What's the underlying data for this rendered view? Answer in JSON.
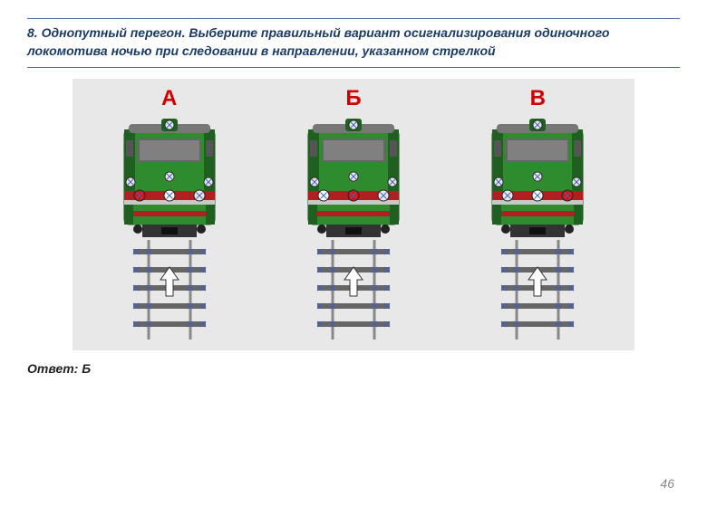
{
  "question": "8. Однопутный перегон. Выберите правильный вариант осигнализирования одиночного локомотива ночью при следовании в направлении, указанном стрелкой",
  "answer": "Ответ: Б",
  "page": "46",
  "labels": [
    "А",
    "Б",
    "В"
  ],
  "label_color": "#d00000",
  "diagram_bg": "#e8e8e8",
  "loco_body": "#2e8b2e",
  "loco_body_dark": "#1f5f1f",
  "loco_roof": "#777777",
  "windshield": "#808080",
  "windshield_frame": "#666666",
  "side_window": "#555555",
  "bumper_red": "#b02020",
  "bumper_band": "#c8c8c8",
  "undercarriage": "#333333",
  "rail_color": "#888888",
  "sleeper_color": "#666666",
  "arrow_fill": "#ffffff",
  "arrow_stroke": "#333333",
  "light_off": "#e8e8e8",
  "light_white": "#ffffff",
  "light_red": "#e01010",
  "light_stroke": "#222222",
  "marker_stroke": "#4060c0",
  "locos": [
    {
      "top_light": "off",
      "mid_left": "off",
      "mid_center": "off",
      "mid_right": "off",
      "low_left": "red",
      "low_center": "white",
      "low_right": "off"
    },
    {
      "top_light": "off",
      "mid_left": "off",
      "mid_center": "off",
      "mid_right": "off",
      "low_left": "white",
      "low_center": "red",
      "low_right": "off"
    },
    {
      "top_light": "off",
      "mid_left": "off",
      "mid_center": "off",
      "mid_right": "off",
      "low_left": "off",
      "low_center": "white",
      "low_right": "red"
    }
  ]
}
